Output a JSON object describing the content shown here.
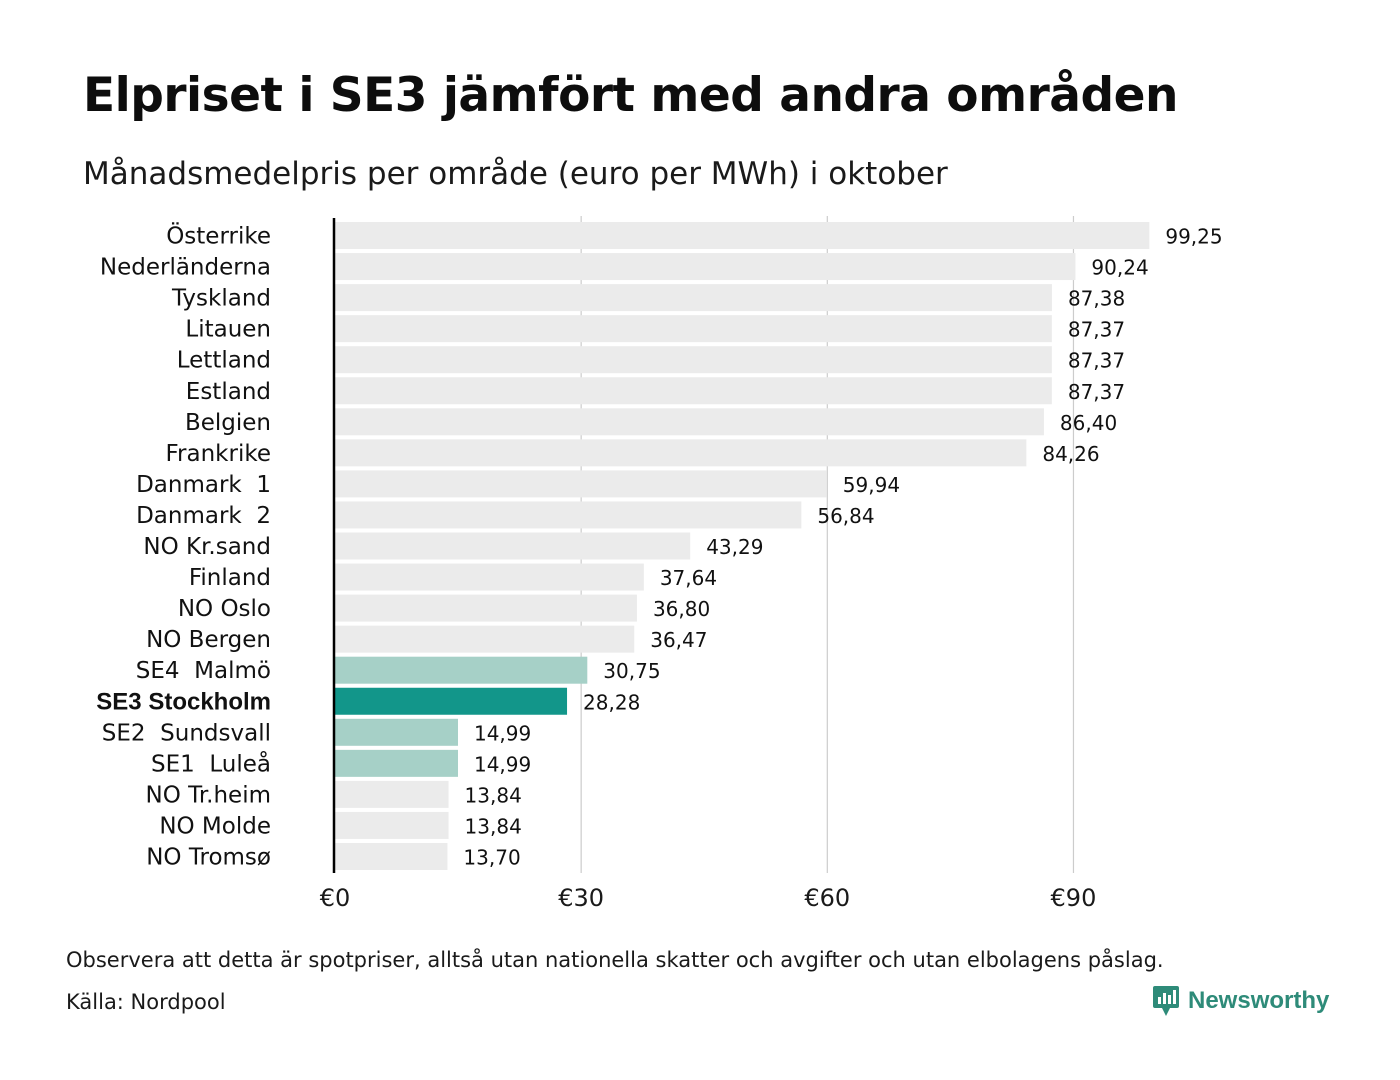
{
  "title": "Elpriset i SE3 jämfört med andra områden",
  "subtitle": "Månadsmedelpris per område (euro per MWh) i oktober",
  "note": "Observera att detta är spotpriser, alltså utan nationella skatter och avgifter och utan elbolagens påslag.",
  "source": "Källa: Nordpool",
  "brand": {
    "name": "Newsworthy",
    "icon": "newsworthy-logo-icon",
    "color": "#2e8b79"
  },
  "colors": {
    "default_bar": "#ebebeb",
    "swedish_bar": "#a6d0c7",
    "highlight_bar": "#12968a",
    "gridline": "#cccccc",
    "axis": "#000000"
  },
  "chart_data": {
    "type": "bar",
    "orientation": "horizontal",
    "xlim": [
      0,
      100
    ],
    "x_ticks": [
      0,
      30,
      60,
      90
    ],
    "x_tick_labels": [
      "€0",
      "€30",
      "€60",
      "€90"
    ],
    "grid": true,
    "categories": [
      "Österrike",
      "Nederländerna",
      "Tyskland",
      "Litauen",
      "Lettland",
      "Estland",
      "Belgien",
      "Frankrike",
      "Danmark  1",
      "Danmark  2",
      "NO Kr.sand",
      "Finland",
      "NO Oslo",
      "NO Bergen",
      "SE4  Malmö",
      "SE3 Stockholm",
      "SE2  Sundsvall",
      "SE1  Luleå",
      "NO Tr.heim",
      "NO Molde",
      "NO Tromsø"
    ],
    "values": [
      99.25,
      90.24,
      87.38,
      87.37,
      87.37,
      87.37,
      86.4,
      84.26,
      59.94,
      56.84,
      43.29,
      37.64,
      36.8,
      36.47,
      30.75,
      28.28,
      14.99,
      14.99,
      13.84,
      13.84,
      13.7
    ],
    "value_labels": [
      "99,25",
      "90,24",
      "87,38",
      "87,37",
      "87,37",
      "87,37",
      "86,40",
      "84,26",
      "59,94",
      "56,84",
      "43,29",
      "37,64",
      "36,80",
      "36,47",
      "30,75",
      "28,28",
      "14,99",
      "14,99",
      "13,84",
      "13,84",
      "13,70"
    ],
    "bar_groups": [
      "other",
      "other",
      "other",
      "other",
      "other",
      "other",
      "other",
      "other",
      "other",
      "other",
      "other",
      "other",
      "other",
      "other",
      "sweden",
      "highlight",
      "sweden",
      "sweden",
      "other",
      "other",
      "other"
    ],
    "highlight": "SE3 Stockholm"
  }
}
